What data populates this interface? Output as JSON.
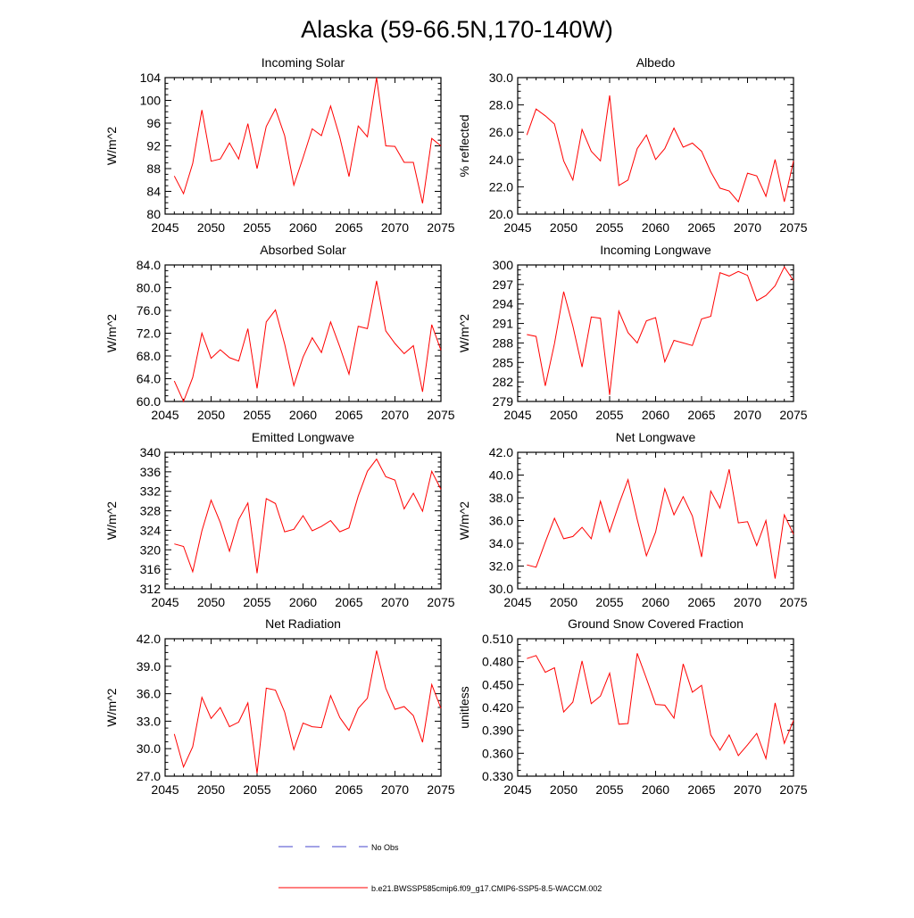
{
  "title": "Alaska (59-66.5N,170-140W)",
  "colors": {
    "model": "#ff0000",
    "obs": "#4444cc",
    "axis": "#000000"
  },
  "legend": {
    "obs_label": "No Obs",
    "model_label": "b.e21.BWSSP585cmip6.f09_g17.CMIP6-SSP5-8.5-WACCM.002"
  },
  "chart_data": [
    {
      "type": "line",
      "title": "Incoming Solar",
      "ylabel": "W/m^2",
      "xlim": [
        2045,
        2075
      ],
      "ylim": [
        80,
        104
      ],
      "xticks": [
        2045,
        2050,
        2055,
        2060,
        2065,
        2070,
        2075
      ],
      "xtick_labels": [
        "2045",
        "2050",
        "2055",
        "2060",
        "2065",
        "2070",
        "2075"
      ],
      "yticks": [
        80,
        84,
        88,
        92,
        96,
        100,
        104
      ],
      "ytick_labels": [
        "80",
        "84",
        "88",
        "92",
        "96",
        "100",
        "104"
      ],
      "x": [
        2046,
        2047,
        2048,
        2049,
        2050,
        2051,
        2052,
        2053,
        2054,
        2055,
        2056,
        2057,
        2058,
        2059,
        2060,
        2061,
        2062,
        2063,
        2064,
        2065,
        2066,
        2067,
        2068,
        2069,
        2070,
        2071,
        2072,
        2073,
        2074,
        2075
      ],
      "values": [
        86.7,
        83.6,
        88.9,
        98.3,
        89.3,
        89.7,
        92.5,
        89.7,
        95.9,
        88.0,
        95.4,
        98.5,
        93.8,
        85.1,
        89.9,
        95.0,
        93.8,
        99.0,
        93.5,
        86.6,
        95.5,
        93.6,
        104.0,
        92.0,
        91.9,
        89.1,
        89.1,
        81.9,
        93.3,
        92.0
      ]
    },
    {
      "type": "line",
      "title": "Albedo",
      "ylabel": "% reflected",
      "xlim": [
        2045,
        2075
      ],
      "ylim": [
        20,
        30
      ],
      "xticks": [
        2045,
        2050,
        2055,
        2060,
        2065,
        2070,
        2075
      ],
      "xtick_labels": [
        "2045",
        "2050",
        "2055",
        "2060",
        "2065",
        "2070",
        "2075"
      ],
      "yticks": [
        20,
        22,
        24,
        26,
        28,
        30
      ],
      "ytick_labels": [
        "20.0",
        "22.0",
        "24.0",
        "26.0",
        "28.0",
        "30.0"
      ],
      "x": [
        2046,
        2047,
        2048,
        2049,
        2050,
        2051,
        2052,
        2053,
        2054,
        2055,
        2056,
        2057,
        2058,
        2059,
        2060,
        2061,
        2062,
        2063,
        2064,
        2065,
        2066,
        2067,
        2068,
        2069,
        2070,
        2071,
        2072,
        2073,
        2074,
        2075
      ],
      "values": [
        25.8,
        27.7,
        27.2,
        26.6,
        23.9,
        22.5,
        26.2,
        24.6,
        23.9,
        28.7,
        22.1,
        22.5,
        24.8,
        25.8,
        24.0,
        24.8,
        26.3,
        24.9,
        25.2,
        24.6,
        23.1,
        21.9,
        21.7,
        20.9,
        23.0,
        22.8,
        21.3,
        24.0,
        20.9,
        23.9
      ]
    },
    {
      "type": "line",
      "title": "Absorbed Solar",
      "ylabel": "W/m^2",
      "xlim": [
        2045,
        2075
      ],
      "ylim": [
        60,
        84
      ],
      "xticks": [
        2045,
        2050,
        2055,
        2060,
        2065,
        2070,
        2075
      ],
      "xtick_labels": [
        "2045",
        "2050",
        "2055",
        "2060",
        "2065",
        "2070",
        "2075"
      ],
      "yticks": [
        60,
        64,
        68,
        72,
        76,
        80,
        84
      ],
      "ytick_labels": [
        "60.0",
        "64.0",
        "68.0",
        "72.0",
        "76.0",
        "80.0",
        "84.0"
      ],
      "x": [
        2046,
        2047,
        2048,
        2049,
        2050,
        2051,
        2052,
        2053,
        2054,
        2055,
        2056,
        2057,
        2058,
        2059,
        2060,
        2061,
        2062,
        2063,
        2064,
        2065,
        2066,
        2067,
        2068,
        2069,
        2070,
        2071,
        2072,
        2073,
        2074,
        2075
      ],
      "values": [
        63.6,
        60.0,
        64.2,
        72.0,
        67.6,
        69.1,
        67.7,
        67.1,
        72.8,
        62.3,
        74.0,
        76.1,
        70.1,
        62.8,
        67.8,
        71.2,
        68.6,
        74.0,
        69.6,
        64.8,
        73.2,
        72.8,
        81.2,
        72.4,
        70.2,
        68.4,
        69.8,
        61.7,
        73.5,
        69.0
      ]
    },
    {
      "type": "line",
      "title": "Incoming Longwave",
      "ylabel": "W/m^2",
      "xlim": [
        2045,
        2075
      ],
      "ylim": [
        279,
        300
      ],
      "xticks": [
        2045,
        2050,
        2055,
        2060,
        2065,
        2070,
        2075
      ],
      "xtick_labels": [
        "2045",
        "2050",
        "2055",
        "2060",
        "2065",
        "2070",
        "2075"
      ],
      "yticks": [
        279,
        282,
        285,
        288,
        291,
        294,
        297,
        300
      ],
      "ytick_labels": [
        "279",
        "282",
        "285",
        "288",
        "291",
        "294",
        "297",
        "300"
      ],
      "x": [
        2046,
        2047,
        2048,
        2049,
        2050,
        2051,
        2052,
        2053,
        2054,
        2055,
        2056,
        2057,
        2058,
        2059,
        2060,
        2061,
        2062,
        2063,
        2064,
        2065,
        2066,
        2067,
        2068,
        2069,
        2070,
        2071,
        2072,
        2073,
        2074,
        2075
      ],
      "values": [
        289.3,
        289.0,
        281.4,
        287.9,
        295.9,
        290.6,
        284.3,
        292.0,
        291.8,
        280.0,
        292.9,
        289.6,
        288.0,
        291.4,
        291.9,
        285.1,
        288.4,
        288.0,
        287.6,
        291.7,
        292.1,
        298.8,
        298.3,
        299.0,
        298.4,
        294.5,
        295.3,
        296.8,
        299.7,
        297.6
      ]
    },
    {
      "type": "line",
      "title": "Emitted Longwave",
      "ylabel": "W/m^2",
      "xlim": [
        2045,
        2075
      ],
      "ylim": [
        312,
        340
      ],
      "xticks": [
        2045,
        2050,
        2055,
        2060,
        2065,
        2070,
        2075
      ],
      "xtick_labels": [
        "2045",
        "2050",
        "2055",
        "2060",
        "2065",
        "2070",
        "2075"
      ],
      "yticks": [
        312,
        316,
        320,
        324,
        328,
        332,
        336,
        340
      ],
      "ytick_labels": [
        "312",
        "316",
        "320",
        "324",
        "328",
        "332",
        "336",
        "340"
      ],
      "x": [
        2046,
        2047,
        2048,
        2049,
        2050,
        2051,
        2052,
        2053,
        2054,
        2055,
        2056,
        2057,
        2058,
        2059,
        2060,
        2061,
        2062,
        2063,
        2064,
        2065,
        2066,
        2067,
        2068,
        2069,
        2070,
        2071,
        2072,
        2073,
        2074,
        2075
      ],
      "values": [
        321.2,
        320.7,
        315.5,
        323.9,
        330.2,
        325.6,
        319.7,
        326.2,
        329.6,
        315.2,
        330.5,
        329.5,
        323.7,
        324.2,
        327.0,
        323.9,
        324.8,
        326.0,
        323.7,
        324.5,
        331.0,
        336.1,
        338.6,
        335.0,
        334.3,
        328.4,
        331.6,
        327.9,
        336.1,
        332.4
      ]
    },
    {
      "type": "line",
      "title": "Net Longwave",
      "ylabel": "W/m^2",
      "xlim": [
        2045,
        2075
      ],
      "ylim": [
        30,
        42
      ],
      "xticks": [
        2045,
        2050,
        2055,
        2060,
        2065,
        2070,
        2075
      ],
      "xtick_labels": [
        "2045",
        "2050",
        "2055",
        "2060",
        "2065",
        "2070",
        "2075"
      ],
      "yticks": [
        30,
        32,
        34,
        36,
        38,
        40,
        42
      ],
      "ytick_labels": [
        "30.0",
        "32.0",
        "34.0",
        "36.0",
        "38.0",
        "40.0",
        "42.0"
      ],
      "x": [
        2046,
        2047,
        2048,
        2049,
        2050,
        2051,
        2052,
        2053,
        2054,
        2055,
        2056,
        2057,
        2058,
        2059,
        2060,
        2061,
        2062,
        2063,
        2064,
        2065,
        2066,
        2067,
        2068,
        2069,
        2070,
        2071,
        2072,
        2073,
        2074,
        2075
      ],
      "values": [
        32.1,
        31.9,
        34.1,
        36.2,
        34.4,
        34.6,
        35.4,
        34.4,
        37.7,
        35.0,
        37.4,
        39.6,
        36.1,
        32.9,
        35.0,
        38.8,
        36.5,
        38.1,
        36.4,
        32.8,
        38.6,
        37.1,
        40.5,
        35.8,
        35.9,
        33.8,
        36.0,
        30.9,
        36.5,
        34.8
      ]
    },
    {
      "type": "line",
      "title": "Net Radiation",
      "ylabel": "W/m^2",
      "xlim": [
        2045,
        2075
      ],
      "ylim": [
        27,
        42
      ],
      "xticks": [
        2045,
        2050,
        2055,
        2060,
        2065,
        2070,
        2075
      ],
      "xtick_labels": [
        "2045",
        "2050",
        "2055",
        "2060",
        "2065",
        "2070",
        "2075"
      ],
      "yticks": [
        27,
        30,
        33,
        36,
        39,
        42
      ],
      "ytick_labels": [
        "27.0",
        "30.0",
        "33.0",
        "36.0",
        "39.0",
        "42.0"
      ],
      "x": [
        2046,
        2047,
        2048,
        2049,
        2050,
        2051,
        2052,
        2053,
        2054,
        2055,
        2056,
        2057,
        2058,
        2059,
        2060,
        2061,
        2062,
        2063,
        2064,
        2065,
        2066,
        2067,
        2068,
        2069,
        2070,
        2071,
        2072,
        2073,
        2074,
        2075
      ],
      "values": [
        31.6,
        28.0,
        30.2,
        35.6,
        33.3,
        34.5,
        32.4,
        32.9,
        35.0,
        27.3,
        36.6,
        36.4,
        34.0,
        29.9,
        32.8,
        32.4,
        32.3,
        35.8,
        33.4,
        32.0,
        34.4,
        35.5,
        40.7,
        36.6,
        34.3,
        34.6,
        33.6,
        30.7,
        37.0,
        34.4
      ]
    },
    {
      "type": "line",
      "title": "Ground Snow Covered Fraction",
      "ylabel": "unitless",
      "xlim": [
        2045,
        2075
      ],
      "ylim": [
        0.33,
        0.51
      ],
      "xticks": [
        2045,
        2050,
        2055,
        2060,
        2065,
        2070,
        2075
      ],
      "xtick_labels": [
        "2045",
        "2050",
        "2055",
        "2060",
        "2065",
        "2070",
        "2075"
      ],
      "yticks": [
        0.33,
        0.36,
        0.39,
        0.42,
        0.45,
        0.48,
        0.51
      ],
      "ytick_labels": [
        "0.330",
        "0.360",
        "0.390",
        "0.420",
        "0.450",
        "0.480",
        "0.510"
      ],
      "x": [
        2046,
        2047,
        2048,
        2049,
        2050,
        2051,
        2052,
        2053,
        2054,
        2055,
        2056,
        2057,
        2058,
        2059,
        2060,
        2061,
        2062,
        2063,
        2064,
        2065,
        2066,
        2067,
        2068,
        2069,
        2070,
        2071,
        2072,
        2073,
        2074,
        2075
      ],
      "values": [
        0.484,
        0.488,
        0.466,
        0.472,
        0.414,
        0.427,
        0.481,
        0.425,
        0.435,
        0.465,
        0.398,
        0.399,
        0.491,
        0.458,
        0.424,
        0.423,
        0.406,
        0.477,
        0.44,
        0.449,
        0.384,
        0.364,
        0.384,
        0.357,
        0.371,
        0.386,
        0.353,
        0.426,
        0.373,
        0.403
      ]
    }
  ]
}
